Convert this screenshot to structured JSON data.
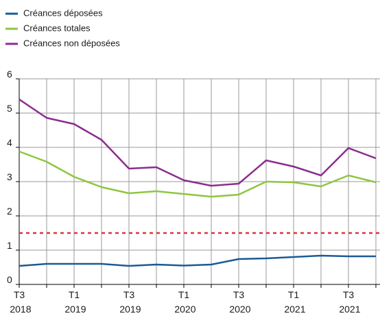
{
  "chart_data": {
    "type": "line",
    "categories": [
      "T3 2018",
      null,
      "T1 2019",
      null,
      "T3 2019",
      null,
      "T1 2020",
      null,
      "T3 2020",
      null,
      "T1 2021",
      null,
      "T3 2021",
      null
    ],
    "series": [
      {
        "name": "Créances déposées",
        "color": "#1a5a96",
        "values": [
          0.54,
          0.6,
          0.6,
          0.6,
          0.54,
          0.58,
          0.55,
          0.58,
          0.74,
          0.76,
          0.8,
          0.84,
          0.82,
          0.82
        ]
      },
      {
        "name": "Créances totales",
        "color": "#8dc63f",
        "values": [
          3.88,
          3.58,
          3.14,
          2.84,
          2.66,
          2.72,
          2.64,
          2.56,
          2.62,
          3.0,
          2.98,
          2.86,
          3.18,
          2.98
        ]
      },
      {
        "name": "Créances non déposées",
        "color": "#8b2c8f",
        "values": [
          5.4,
          4.86,
          4.68,
          4.22,
          3.38,
          3.42,
          3.04,
          2.88,
          2.94,
          3.62,
          3.44,
          3.18,
          3.98,
          3.68
        ]
      }
    ],
    "reference_line": {
      "value": 1.5,
      "color": "#e0313c"
    },
    "xlim": [
      0,
      13.15
    ],
    "ylim": [
      0,
      6
    ],
    "yticks": [
      0,
      1,
      2,
      3,
      4,
      5,
      6
    ],
    "grid": true,
    "legend": "top-left"
  }
}
